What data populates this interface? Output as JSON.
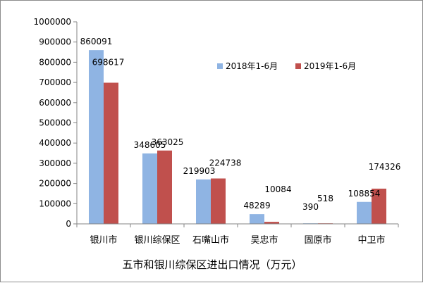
{
  "chart_data": {
    "type": "bar",
    "title": "",
    "xlabel": "五市和银川综保区进出口情况（万元）",
    "ylabel": "",
    "categories": [
      "银川市",
      "银川综保区",
      "石嘴山市",
      "吴忠市",
      "固原市",
      "中卫市"
    ],
    "series": [
      {
        "name": "2018年1-6月",
        "color": "#8fb4e3",
        "values": [
          860091,
          348605,
          219903,
          48289,
          390,
          108854
        ]
      },
      {
        "name": "2019年1-6月",
        "color": "#c0504d",
        "values": [
          698617,
          363025,
          224738,
          10084,
          518,
          174326
        ]
      }
    ],
    "ylim": [
      0,
      1000000
    ],
    "yticks": [
      "0",
      "100000",
      "200000",
      "300000",
      "400000",
      "500000",
      "600000",
      "700000",
      "800000",
      "900000",
      "1000000"
    ],
    "grid": false,
    "legend": "top-right"
  }
}
